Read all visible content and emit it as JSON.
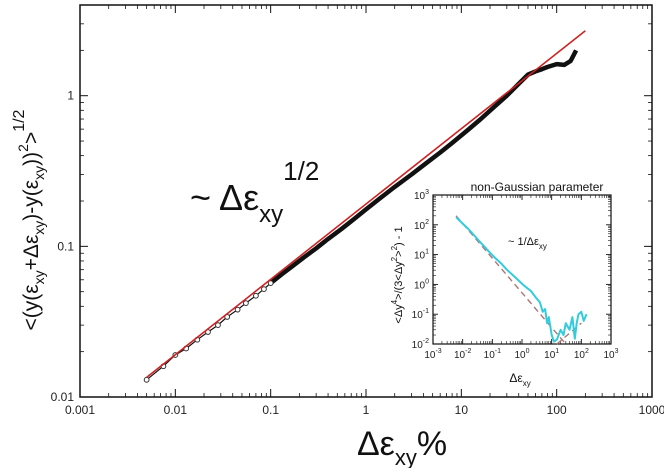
{
  "chart_data": [
    {
      "type": "scatter",
      "xscale": "log",
      "yscale": "log",
      "xlim": [
        0.001,
        1000
      ],
      "ylim": [
        0.01,
        4
      ],
      "xticks": [
        0.001,
        0.01,
        0.1,
        1,
        10,
        100,
        1000
      ],
      "xtick_labels": [
        "0.001",
        "0.01",
        "0.1",
        "1",
        "10",
        "100",
        "1000"
      ],
      "yticks": [
        0.01,
        0.1,
        1
      ],
      "ytick_labels": [
        "0.01",
        "0.1",
        "1"
      ],
      "xlabel": {
        "main": "Δε",
        "sub": "xy",
        "tail": "%"
      },
      "ylabel": {
        "p1": "<(y(ε",
        "s1": "xy",
        "p2": "+Δε",
        "s2": "xy",
        "p3": ")-y(ε",
        "s3": "xy",
        "p4": "))",
        "sup1": "2",
        "p5": ">",
        "sup2": "1/2"
      },
      "annotation": {
        "text": "~ Δε",
        "sub": "xy",
        "sup": "1/2"
      },
      "series": [
        {
          "style": "open-circles",
          "color": "#333333",
          "x": [
            0.005,
            0.0075,
            0.01,
            0.013,
            0.017,
            0.022,
            0.028,
            0.035,
            0.045,
            0.055,
            0.07,
            0.085,
            0.1,
            0.13,
            0.17,
            0.22,
            0.3,
            0.4,
            0.55,
            0.75,
            1,
            1.4,
            2,
            3,
            4,
            6,
            8,
            12,
            16,
            22,
            30,
            40,
            50,
            60,
            70,
            80,
            100,
            120,
            140,
            160
          ],
          "y": [
            0.013,
            0.016,
            0.019,
            0.021,
            0.024,
            0.027,
            0.03,
            0.034,
            0.038,
            0.042,
            0.047,
            0.052,
            0.057,
            0.065,
            0.074,
            0.084,
            0.097,
            0.112,
            0.13,
            0.152,
            0.176,
            0.208,
            0.248,
            0.3,
            0.345,
            0.42,
            0.485,
            0.6,
            0.7,
            0.84,
            1.0,
            1.2,
            1.38,
            1.45,
            1.5,
            1.55,
            1.62,
            1.6,
            1.7,
            2.0
          ]
        },
        {
          "style": "line",
          "color": "#cc2222",
          "x": [
            0.005,
            200
          ],
          "y": [
            0.0135,
            2.7
          ]
        }
      ]
    },
    {
      "type": "line",
      "title": "non-Gaussian parameter",
      "xscale": "log",
      "yscale": "log",
      "xlim": [
        0.001,
        1000
      ],
      "ylim": [
        0.01,
        1000
      ],
      "xtick_labels": [
        "10-3",
        "10-2",
        "10-1",
        "100",
        "101",
        "102",
        "103"
      ],
      "ytick_labels": [
        "10-2",
        "10-1",
        "100",
        "101",
        "102",
        "103"
      ],
      "xlabel": {
        "main": "Δε",
        "sub": "xy"
      },
      "ylabel": {
        "p1": "<Δy",
        "sup1": "4",
        "p2": ">/(3<Δy",
        "sup2": "2",
        "p3": ">",
        "sup3": "2",
        "p4": ") - 1"
      },
      "annotation": {
        "text": "~ 1/Δε",
        "sub": "xy"
      },
      "series": [
        {
          "style": "line",
          "color": "#33ccdd",
          "x": [
            0.006,
            0.01,
            0.015,
            0.02,
            0.03,
            0.05,
            0.08,
            0.12,
            0.2,
            0.3,
            0.5,
            0.8,
            1.2,
            2,
            3,
            4,
            5,
            6,
            7,
            8,
            10,
            12,
            15,
            20,
            25,
            30,
            40,
            50,
            60,
            70,
            80,
            100,
            120,
            150
          ],
          "y": [
            180,
            110,
            75,
            55,
            35,
            20,
            12,
            8,
            5,
            3.2,
            2,
            1.3,
            0.9,
            0.6,
            0.35,
            0.25,
            0.12,
            0.15,
            0.05,
            0.08,
            0.02,
            0.012,
            0.014,
            0.03,
            0.02,
            0.05,
            0.03,
            0.08,
            0.015,
            0.05,
            0.1,
            0.12,
            0.06,
            0.1
          ]
        },
        {
          "style": "dashed",
          "color": "#aa7777",
          "x": [
            0.006,
            30
          ],
          "y": [
            200,
            0.01
          ]
        },
        {
          "style": "dashed",
          "color": "#aa7777",
          "x": [
            15,
            100
          ],
          "y": [
            0.01,
            0.05
          ]
        }
      ]
    }
  ]
}
